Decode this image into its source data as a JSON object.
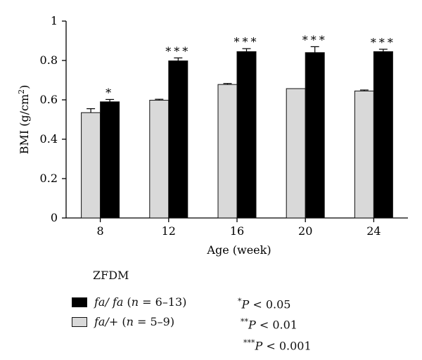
{
  "chart_data": {
    "type": "bar",
    "xlabel": "Age (week)",
    "ylabel": "BMI (g/cm²)",
    "ylim": [
      0,
      1
    ],
    "yticks": [
      "0",
      "0.2",
      "0.4",
      "0.6",
      "0.8",
      "1"
    ],
    "categories": [
      "8",
      "12",
      "16",
      "20",
      "24"
    ],
    "series": [
      {
        "name": "fa/+ (n = 5–9)",
        "color": "#d9d9d9",
        "values": [
          0.535,
          0.598,
          0.678,
          0.657,
          0.645
        ],
        "errors": [
          0.02,
          0.005,
          0.005,
          0.0,
          0.005
        ]
      },
      {
        "name": "fa/fa (n = 6–13)",
        "color": "#000000",
        "values": [
          0.59,
          0.798,
          0.845,
          0.84,
          0.845
        ],
        "errors": [
          0.012,
          0.015,
          0.015,
          0.03,
          0.012
        ]
      }
    ],
    "significance": [
      "*",
      "***",
      "***",
      "***",
      "***"
    ],
    "grid": false
  },
  "legend": {
    "title": "ZFDM",
    "items": [
      {
        "prefix": "fa/ fa",
        "open": " (",
        "n": "n",
        "rest": " = 6–13)"
      },
      {
        "prefix": "fa/+",
        "open": " (",
        "n": "n",
        "rest": " = 5–9)"
      }
    ]
  },
  "notes": [
    {
      "stars": "*",
      "p": "P",
      "rest": " < 0.05"
    },
    {
      "stars": "**",
      "p": "P",
      "rest": " < 0.01"
    },
    {
      "stars": "***",
      "p": "P",
      "rest": " < 0.001"
    }
  ]
}
